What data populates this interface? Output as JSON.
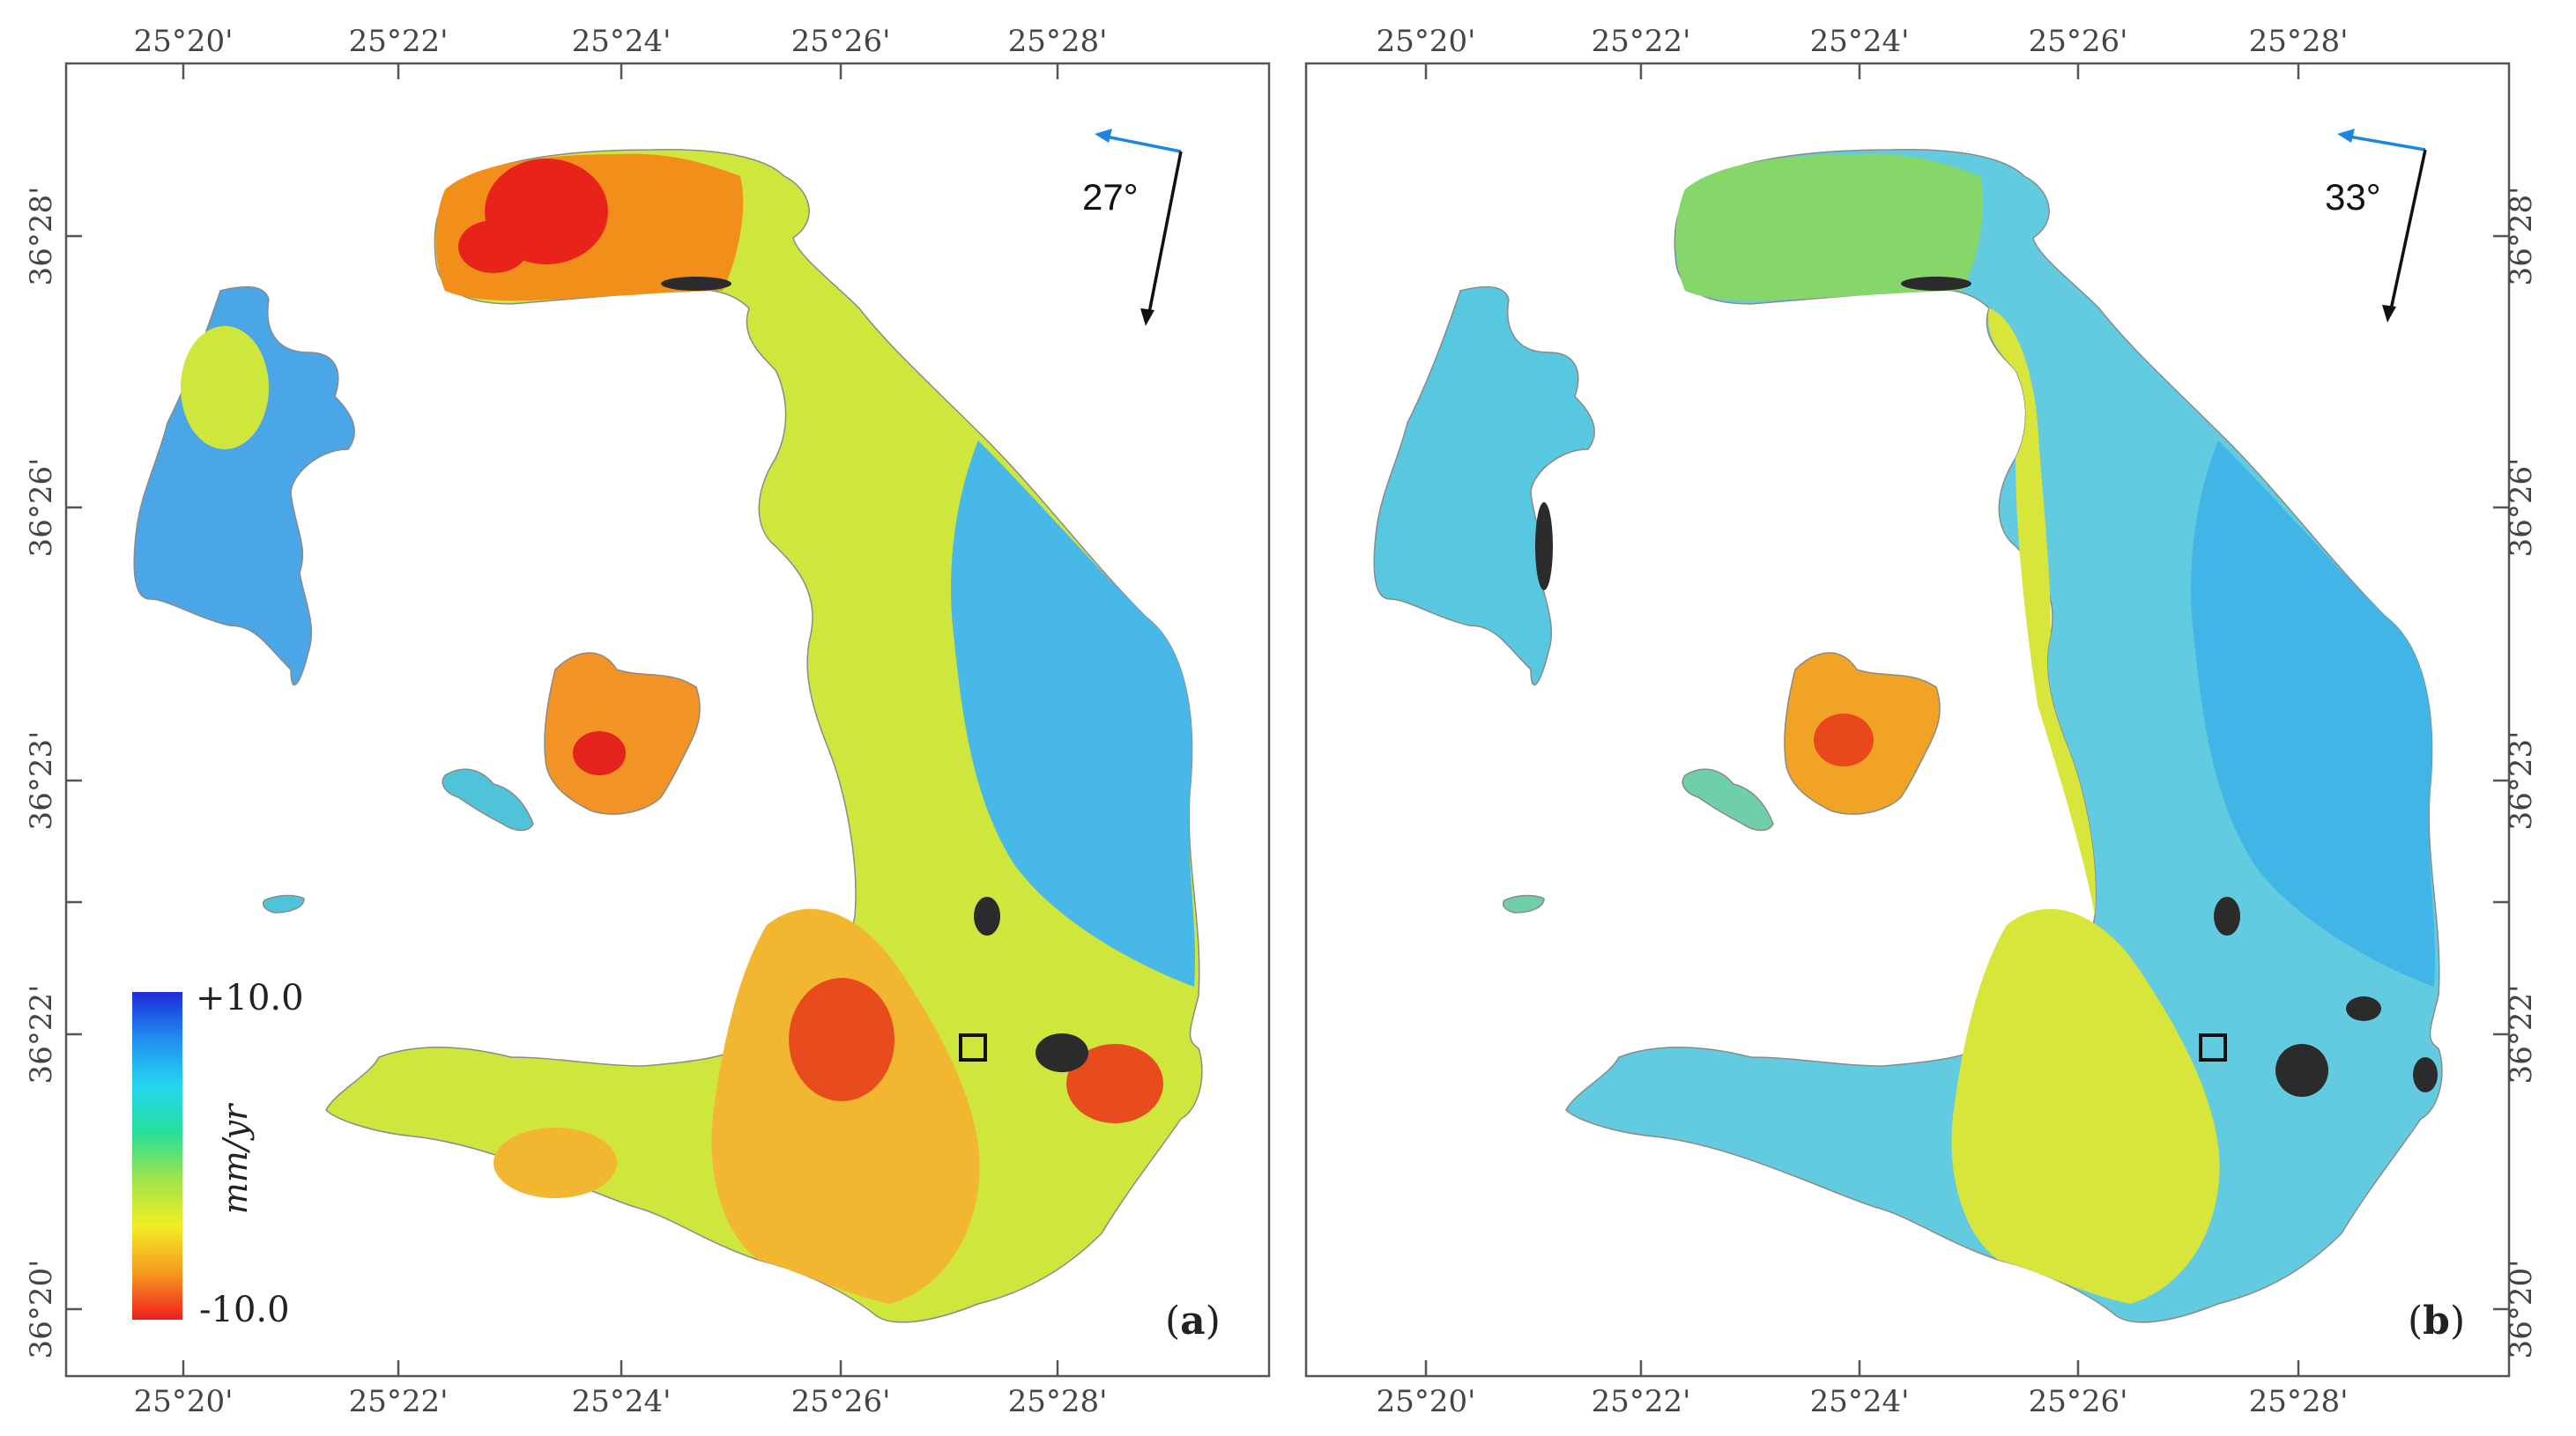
{
  "figure": {
    "panels": [
      {
        "id": "a",
        "label_open": "(",
        "label_letter": "a",
        "label_close": ")",
        "heading_angle": "27°",
        "x_ticks": [
          "25°20'",
          "25°22'",
          "25°24'",
          "25°26'",
          "25°28'"
        ],
        "y_ticks": [
          "36°28'",
          "36°26'",
          "36°23'",
          "36°22'",
          "36°22'",
          "36°20'"
        ],
        "y_axis_side": "left",
        "colors": {
          "north": "#f28f1a",
          "north_hot": "#e8231a",
          "west_island": "#4aa6e6",
          "palea_kameni": "#4fc4d9",
          "nea_kameni": "#f29425",
          "nea_kameni_hot": "#e3231c",
          "main": "#cfe63c",
          "east": "#47b8e8",
          "south": "#f3b630",
          "southeast_hot": "#e84b1c",
          "dark": "#2b2b2b"
        }
      },
      {
        "id": "b",
        "label_open": "(",
        "label_letter": "b",
        "label_close": ")",
        "heading_angle": "33°",
        "x_ticks": [
          "25°20'",
          "25°22'",
          "25°24'",
          "25°26'",
          "25°28'"
        ],
        "y_ticks": [
          "36°28'",
          "36°26'",
          "36°23'",
          "36°22'",
          "36°22'",
          "36°20'"
        ],
        "y_axis_side": "right",
        "colors": {
          "north": "#86d66a",
          "north_hot": "#b8e04a",
          "west_island": "#57c8e0",
          "palea_kameni": "#6fcfa8",
          "nea_kameni": "#f0a324",
          "nea_kameni_hot": "#e9471c",
          "main": "#63cbe0",
          "east": "#41b6e6",
          "south": "#d8e53a",
          "southeast_hot": "#5bc4d8",
          "dark": "#2b2b2b"
        }
      }
    ],
    "legend": {
      "max_label": "+10.0",
      "min_label": "-10.0",
      "unit": "mm/yr",
      "colorbar_colors": [
        "#1e2bd8",
        "#1f8ef0",
        "#25d6f0",
        "#25e09a",
        "#9ee44a",
        "#f2ee24",
        "#f59a1e",
        "#ee1d1d"
      ]
    },
    "arrows": {
      "flight_color": "#1a86e0",
      "look_color": "#111111"
    }
  }
}
